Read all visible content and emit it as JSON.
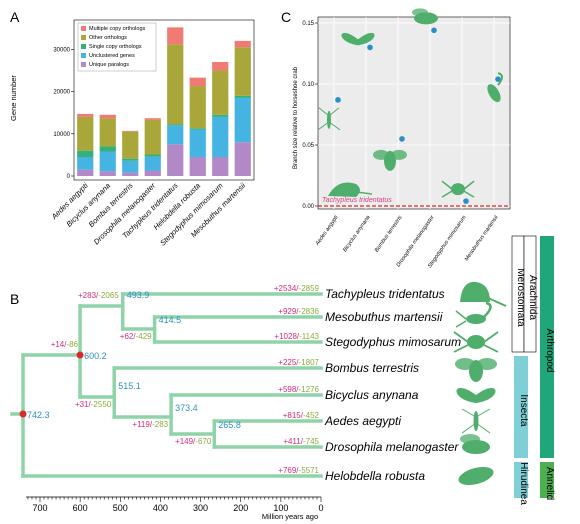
{
  "chart_data": [
    {
      "panel": "A",
      "type": "bar",
      "stacked": true,
      "ylabel": "Gene number",
      "ylim": [
        0,
        36000
      ],
      "yticks": [
        0,
        10000,
        20000,
        30000
      ],
      "categories": [
        "Aedes aegypti",
        "Bicyclus anynana",
        "Bombus terrestris",
        "Drosophila melanogaster",
        "Tachypleus tridentatus",
        "Helobdella robusta",
        "Stegodyphus mimosarum",
        "Mesobuthus martensii"
      ],
      "series": [
        {
          "name": "Unique paralogs",
          "color": "#b388c7",
          "values": [
            1500,
            1100,
            800,
            1300,
            7500,
            4500,
            4500,
            8000
          ]
        },
        {
          "name": "Unclustered genes",
          "color": "#46b4e3",
          "values": [
            3000,
            4700,
            2800,
            3300,
            4500,
            6500,
            9500,
            10500
          ]
        },
        {
          "name": "Single copy orthologs",
          "color": "#35b07a",
          "values": [
            1500,
            1200,
            500,
            500,
            200,
            300,
            500,
            500
          ]
        },
        {
          "name": "Other orthologs",
          "color": "#a9a63a",
          "values": [
            8000,
            6700,
            6400,
            8200,
            19000,
            10000,
            10500,
            11500
          ]
        },
        {
          "name": "Multiple copy orthologs",
          "color": "#ef7b74",
          "values": [
            700,
            800,
            200,
            400,
            4000,
            2000,
            2000,
            1500
          ]
        }
      ]
    },
    {
      "panel": "C",
      "type": "scatter",
      "ylabel": "Branch size relative to horseshoe crab",
      "ylim": [
        0,
        0.15
      ],
      "yticks": [
        "0.00",
        "0.05",
        "0.10",
        "0.15"
      ],
      "categories": [
        "Aedes aegypti",
        "Bicyclus anynana",
        "Bombus terrestris",
        "Drosophila melanogaster",
        "Stegodyphus mimosarum",
        "Mesobuthus martensii"
      ],
      "values": [
        0.087,
        0.13,
        0.055,
        0.144,
        0.004,
        0.104
      ],
      "reference": {
        "label": "Tachypleus tridentatus",
        "value": 0.0
      }
    },
    {
      "panel": "B",
      "type": "tree",
      "xlabel": "Million years ago",
      "xticks": [
        700,
        600,
        500,
        400,
        300,
        200,
        100,
        0
      ],
      "taxa": [
        {
          "name": "Tachypleus tridentatus",
          "gain": "+2534",
          "loss": "-2859"
        },
        {
          "name": "Mesobuthus martensii",
          "gain": "+929",
          "loss": "-2836"
        },
        {
          "name": "Stegodyphus mimosarum",
          "gain": "+1028",
          "loss": "-1143"
        },
        {
          "name": "Bombus terrestris",
          "gain": "+225",
          "loss": "-1807"
        },
        {
          "name": "Bicyclus anynana",
          "gain": "+598",
          "loss": "-1276"
        },
        {
          "name": "Aedes aegypti",
          "gain": "+815",
          "loss": "-452"
        },
        {
          "name": "Drosophila melanogaster",
          "gain": "+411",
          "loss": "-745"
        },
        {
          "name": "Helobdella robusta",
          "gain": "+769",
          "loss": "-5571"
        }
      ],
      "nodes": [
        {
          "id": "root",
          "age": "742.3",
          "gain": "",
          "loss": ""
        },
        {
          "id": "arthropod",
          "age": "600.2",
          "gain": "+14",
          "loss": "-86"
        },
        {
          "id": "chelicerata",
          "age": "493.9",
          "gain": "+283",
          "loss": "-2065"
        },
        {
          "id": "arachnida",
          "age": "414.5",
          "gain": "+62",
          "loss": "-429"
        },
        {
          "id": "insecta",
          "age": "515.1",
          "gain": "+31",
          "loss": "-2550"
        },
        {
          "id": "holometabola",
          "age": "373.4",
          "gain": "+119",
          "loss": "-283"
        },
        {
          "id": "diptera",
          "age": "265.8",
          "gain": "+149",
          "loss": "-670"
        }
      ],
      "clades": [
        {
          "name": "Merostomata",
          "color": "#ffffff"
        },
        {
          "name": "Arachnida",
          "color": "#ffffff"
        },
        {
          "name": "Insecta",
          "color": "#7fcfd6"
        },
        {
          "name": "Arthropod",
          "color": "#1fa67a"
        },
        {
          "name": "Hirudinea",
          "color": "#7fcfd6"
        },
        {
          "name": "Annelid",
          "color": "#4caf50"
        }
      ]
    }
  ],
  "labels": {
    "a": "A",
    "b": "B",
    "c": "C"
  },
  "colors": {
    "tree": "#8fd4a8",
    "node_dot": "#d62b2b",
    "point": "#2a8fc6",
    "silhouette": "#4fae6c"
  },
  "icons": [
    "fly-icon",
    "butterfly-icon",
    "bee-icon",
    "spider-icon",
    "scorpion-icon",
    "horseshoe-crab-icon",
    "leech-icon"
  ]
}
